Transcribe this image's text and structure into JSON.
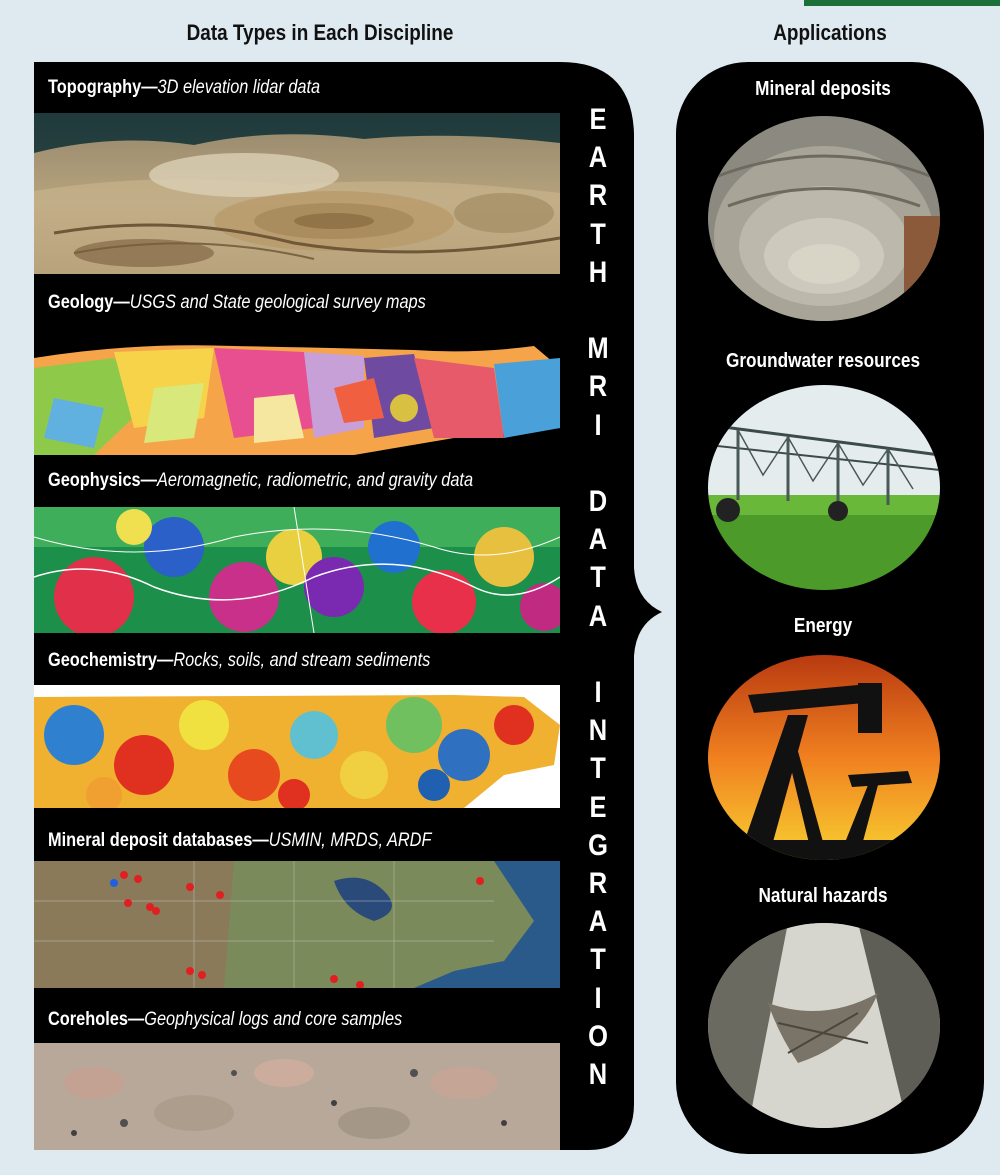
{
  "headers": {
    "left": "Data Types in Each Discipline",
    "right": "Applications"
  },
  "disciplines": [
    {
      "name": "Topography—",
      "desc": "3D elevation lidar data"
    },
    {
      "name": "Geology—",
      "desc": "USGS and State geological survey maps"
    },
    {
      "name": "Geophysics—",
      "desc": "Aeromagnetic, radiometric, and gravity data"
    },
    {
      "name": "Geochemistry—",
      "desc": "Rocks, soils, and stream sediments"
    },
    {
      "name": "Mineral deposit databases—",
      "desc": "USMIN, MRDS, ARDF"
    },
    {
      "name": "Coreholes—",
      "desc": "Geophysical logs and core samples"
    }
  ],
  "vertical_letters": [
    "E",
    "A",
    "R",
    "T",
    "H",
    "",
    "M",
    "R",
    "I",
    "",
    "D",
    "A",
    "T",
    "A",
    "",
    "I",
    "N",
    "T",
    "E",
    "G",
    "R",
    "A",
    "T",
    "I",
    "O",
    "N"
  ],
  "applications": [
    "Mineral deposits",
    "Groundwater resources",
    "Energy",
    "Natural hazards"
  ],
  "colors": {
    "background": "#dfe9f0",
    "black": "#000000",
    "accent": "#1d6f3a"
  }
}
